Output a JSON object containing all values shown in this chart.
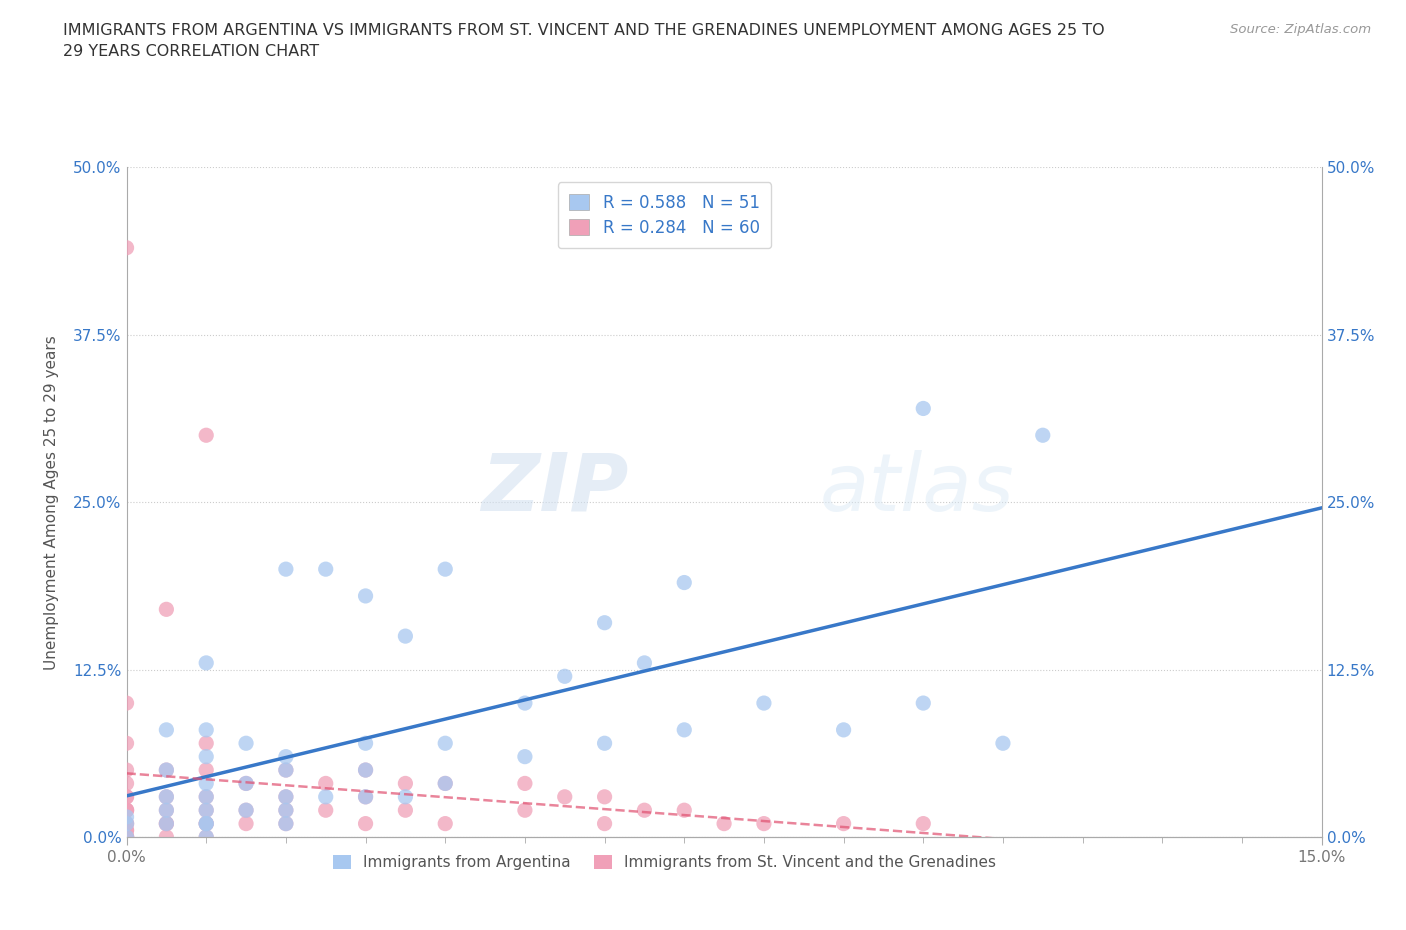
{
  "title": "IMMIGRANTS FROM ARGENTINA VS IMMIGRANTS FROM ST. VINCENT AND THE GRENADINES UNEMPLOYMENT AMONG AGES 25 TO\n29 YEARS CORRELATION CHART",
  "source": "Source: ZipAtlas.com",
  "ylabel": "Unemployment Among Ages 25 to 29 years",
  "xlim": [
    0.0,
    0.15
  ],
  "ylim": [
    0.0,
    0.5
  ],
  "argentina_R": 0.588,
  "argentina_N": 51,
  "svg_R": 0.284,
  "svg_N": 60,
  "argentina_color": "#a8c8f0",
  "argentina_line_color": "#3878c8",
  "svg_color": "#f0a0b8",
  "svg_line_color": "#e05070",
  "watermark_zip": "ZIP",
  "watermark_atlas": "atlas",
  "legend_argentina": "Immigrants from Argentina",
  "legend_svg": "Immigrants from St. Vincent and the Grenadines",
  "argentina_x": [
    0.0,
    0.0,
    0.0,
    0.005,
    0.005,
    0.005,
    0.005,
    0.005,
    0.01,
    0.01,
    0.01,
    0.01,
    0.01,
    0.01,
    0.01,
    0.01,
    0.01,
    0.015,
    0.015,
    0.015,
    0.02,
    0.02,
    0.02,
    0.02,
    0.02,
    0.02,
    0.025,
    0.025,
    0.03,
    0.03,
    0.03,
    0.03,
    0.035,
    0.035,
    0.04,
    0.04,
    0.04,
    0.05,
    0.05,
    0.055,
    0.06,
    0.06,
    0.065,
    0.07,
    0.07,
    0.08,
    0.09,
    0.1,
    0.1,
    0.11,
    0.115
  ],
  "argentina_y": [
    0.0,
    0.01,
    0.015,
    0.01,
    0.02,
    0.03,
    0.05,
    0.08,
    0.0,
    0.01,
    0.01,
    0.02,
    0.03,
    0.04,
    0.06,
    0.08,
    0.13,
    0.02,
    0.04,
    0.07,
    0.01,
    0.02,
    0.03,
    0.05,
    0.06,
    0.2,
    0.03,
    0.2,
    0.03,
    0.05,
    0.07,
    0.18,
    0.03,
    0.15,
    0.04,
    0.07,
    0.2,
    0.06,
    0.1,
    0.12,
    0.07,
    0.16,
    0.13,
    0.08,
    0.19,
    0.1,
    0.08,
    0.1,
    0.32,
    0.07,
    0.3
  ],
  "svg_x": [
    0.0,
    0.0,
    0.0,
    0.0,
    0.0,
    0.0,
    0.0,
    0.0,
    0.0,
    0.0,
    0.0,
    0.0,
    0.0,
    0.0,
    0.0,
    0.0,
    0.0,
    0.0,
    0.005,
    0.005,
    0.005,
    0.005,
    0.005,
    0.005,
    0.005,
    0.01,
    0.01,
    0.01,
    0.01,
    0.01,
    0.01,
    0.01,
    0.01,
    0.015,
    0.015,
    0.015,
    0.02,
    0.02,
    0.02,
    0.02,
    0.025,
    0.025,
    0.03,
    0.03,
    0.03,
    0.035,
    0.035,
    0.04,
    0.04,
    0.05,
    0.05,
    0.055,
    0.06,
    0.06,
    0.065,
    0.07,
    0.075,
    0.08,
    0.09,
    0.1
  ],
  "svg_y": [
    0.0,
    0.0,
    0.0,
    0.0,
    0.005,
    0.005,
    0.01,
    0.01,
    0.02,
    0.02,
    0.02,
    0.03,
    0.03,
    0.04,
    0.05,
    0.07,
    0.1,
    0.44,
    0.0,
    0.01,
    0.01,
    0.02,
    0.03,
    0.05,
    0.17,
    0.0,
    0.01,
    0.01,
    0.02,
    0.03,
    0.05,
    0.07,
    0.3,
    0.01,
    0.02,
    0.04,
    0.01,
    0.02,
    0.03,
    0.05,
    0.02,
    0.04,
    0.01,
    0.03,
    0.05,
    0.02,
    0.04,
    0.01,
    0.04,
    0.02,
    0.04,
    0.03,
    0.01,
    0.03,
    0.02,
    0.02,
    0.01,
    0.01,
    0.01,
    0.01
  ]
}
